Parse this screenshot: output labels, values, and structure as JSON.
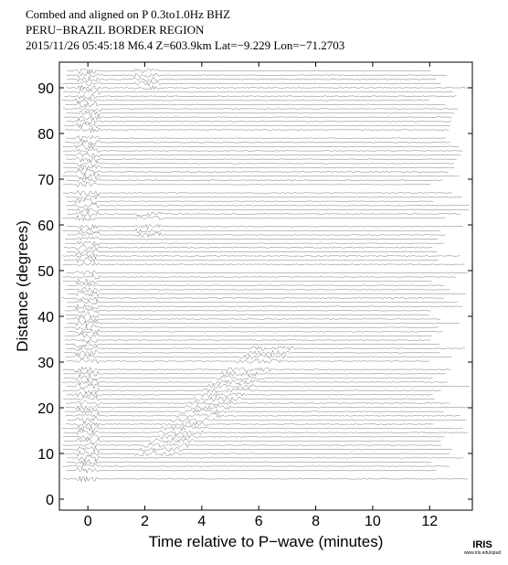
{
  "chart_data": {
    "type": "record-section",
    "title": [
      "Combed and aligned on P  0.3to1.0Hz  BHZ",
      "PERU−BRAZIL BORDER REGION",
      "2015/11/26  05:45:18  M6.4  Z=603.9km Lat=−9.229 Lon=−71.2703"
    ],
    "xlabel": "Time relative to P−wave (minutes)",
    "ylabel": "Distance (degrees)",
    "xlim": [
      -1,
      13.5
    ],
    "xticks": [
      0,
      2,
      4,
      6,
      8,
      10,
      12
    ],
    "ylim": [
      -2.4,
      95.6
    ],
    "yticks": [
      0,
      10,
      20,
      30,
      40,
      50,
      60,
      70,
      80,
      90
    ],
    "logo": [
      "IRIS",
      "www.iris.edu/spud"
    ]
  }
}
